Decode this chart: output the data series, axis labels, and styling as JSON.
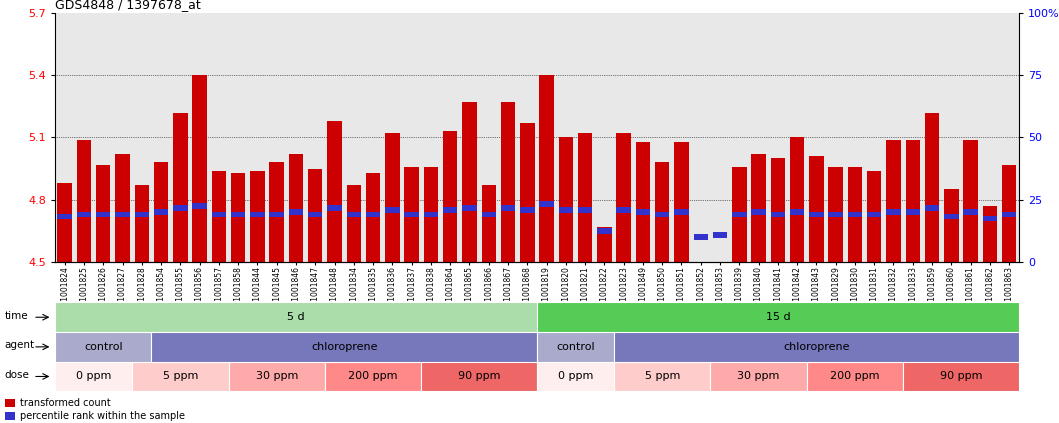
{
  "title": "GDS4848 / 1397678_at",
  "samples": [
    "GSM1001824",
    "GSM1001825",
    "GSM1001826",
    "GSM1001827",
    "GSM1001828",
    "GSM1001854",
    "GSM1001855",
    "GSM1001856",
    "GSM1001857",
    "GSM1001858",
    "GSM1001844",
    "GSM1001845",
    "GSM1001846",
    "GSM1001847",
    "GSM1001848",
    "GSM1001834",
    "GSM1001835",
    "GSM1001836",
    "GSM1001837",
    "GSM1001838",
    "GSM1001864",
    "GSM1001865",
    "GSM1001866",
    "GSM1001867",
    "GSM1001868",
    "GSM1001819",
    "GSM1001820",
    "GSM1001821",
    "GSM1001822",
    "GSM1001823",
    "GSM1001849",
    "GSM1001850",
    "GSM1001851",
    "GSM1001852",
    "GSM1001853",
    "GSM1001839",
    "GSM1001840",
    "GSM1001841",
    "GSM1001842",
    "GSM1001843",
    "GSM1001829",
    "GSM1001830",
    "GSM1001831",
    "GSM1001832",
    "GSM1001833",
    "GSM1001859",
    "GSM1001860",
    "GSM1001861",
    "GSM1001862",
    "GSM1001863"
  ],
  "bar_values": [
    4.88,
    5.09,
    4.97,
    5.02,
    4.87,
    4.98,
    5.22,
    5.4,
    4.94,
    4.93,
    4.94,
    4.98,
    5.02,
    4.95,
    5.18,
    4.87,
    4.93,
    5.12,
    4.96,
    4.96,
    5.13,
    5.27,
    4.87,
    5.27,
    5.17,
    5.4,
    5.1,
    5.12,
    4.67,
    5.12,
    5.08,
    4.98,
    5.08,
    4.44,
    4.47,
    4.96,
    5.02,
    5.0,
    5.1,
    5.01,
    4.96,
    4.96,
    4.94,
    5.09,
    5.09,
    5.22,
    4.85,
    5.09,
    4.77,
    4.97
  ],
  "blue_values": [
    4.72,
    4.73,
    4.73,
    4.73,
    4.73,
    4.74,
    4.76,
    4.77,
    4.73,
    4.73,
    4.73,
    4.73,
    4.74,
    4.73,
    4.76,
    4.73,
    4.73,
    4.75,
    4.73,
    4.73,
    4.75,
    4.76,
    4.73,
    4.76,
    4.75,
    4.78,
    4.75,
    4.75,
    4.65,
    4.75,
    4.74,
    4.73,
    4.74,
    4.62,
    4.63,
    4.73,
    4.74,
    4.73,
    4.74,
    4.73,
    4.73,
    4.73,
    4.73,
    4.74,
    4.74,
    4.76,
    4.72,
    4.74,
    4.71,
    4.73
  ],
  "ylim": [
    4.5,
    5.7
  ],
  "yticks": [
    4.5,
    4.8,
    5.1,
    5.4,
    5.7
  ],
  "right_yticks": [
    0,
    25,
    50,
    75,
    100
  ],
  "bar_color": "#CC0000",
  "blue_color": "#3333CC",
  "chart_bg": "#E8E8E8",
  "time_5d_color": "#AADDAA",
  "time_15d_color": "#55CC55",
  "agent_control_color": "#AAAACC",
  "agent_chloro_color": "#7777BB",
  "dose_colors": [
    "#FFEEEE",
    "#FFCCCC",
    "#FFAAAA",
    "#FF8888",
    "#EE6666"
  ],
  "dose_labels": [
    "0 ppm",
    "5 ppm",
    "30 ppm",
    "200 ppm",
    "90 ppm"
  ]
}
